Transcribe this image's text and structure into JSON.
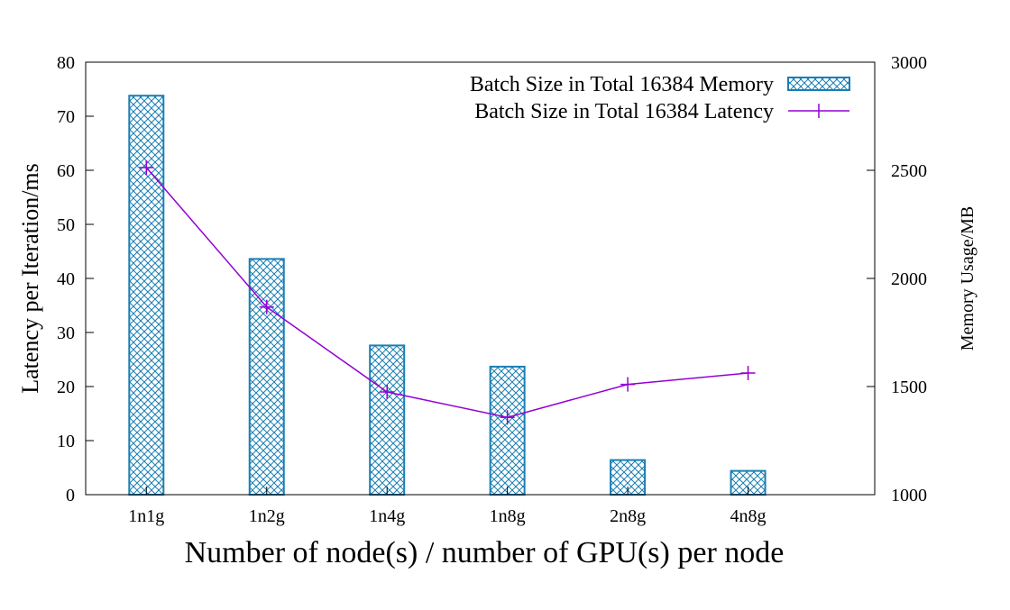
{
  "colors": {
    "bar": "#1f77b4",
    "bar_edge": "#1a7fb4",
    "line": "#9400d3",
    "axis": "#000000",
    "background": "#ffffff"
  },
  "chart_data": {
    "type": "bar",
    "categories": [
      "1n1g",
      "1n2g",
      "1n4g",
      "1n8g",
      "2n8g",
      "4n8g"
    ],
    "xlabel": "Number of node(s) / number of GPU(s) per node",
    "ylabel": "Latency per Iteration/ms",
    "y2label": "Memory Usage/MB",
    "ylim": [
      0,
      80
    ],
    "y2lim": [
      1000,
      3000
    ],
    "yticks": [
      "0",
      "10",
      "20",
      "30",
      "40",
      "50",
      "60",
      "70",
      "80"
    ],
    "y2ticks": [
      "1000",
      "1500",
      "2000",
      "2500",
      "3000"
    ],
    "grid": false,
    "legend_position": "top-right",
    "series": [
      {
        "name": "Batch Size in Total 16384 Memory",
        "type": "bar",
        "axis": "right",
        "pattern": "crosshatch",
        "values": [
          2845,
          2090,
          1690,
          1592,
          1160,
          1110
        ]
      },
      {
        "name": "Batch Size in Total 16384 Latency",
        "type": "line",
        "axis": "left",
        "marker": "plus",
        "values": [
          60.5,
          34.7,
          19.0,
          14.3,
          20.4,
          22.5
        ]
      }
    ]
  }
}
